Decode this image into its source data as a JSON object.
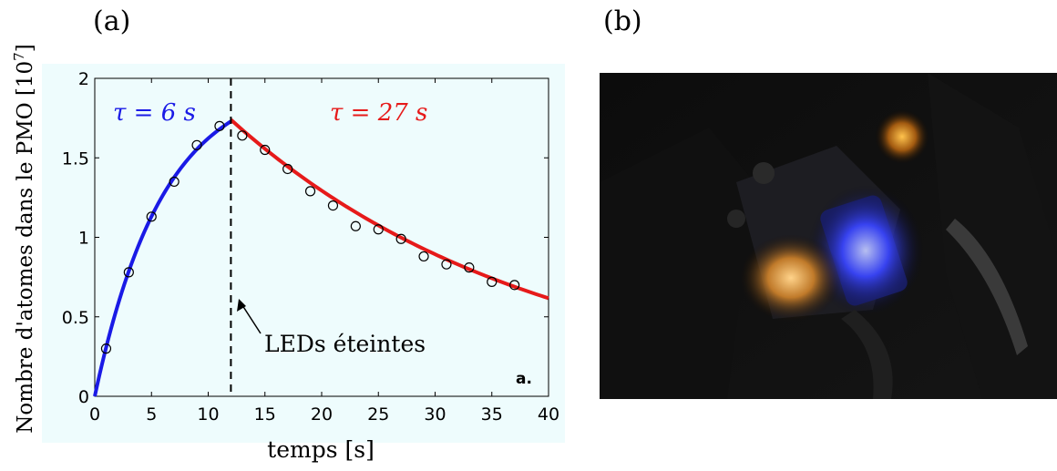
{
  "panels": {
    "a": "(a)",
    "b": "(b)"
  },
  "colors": {
    "fit_rise": "#1a1ae6",
    "fit_decay": "#e61a1a",
    "markers": "#000000",
    "plot_bg": "#eefcfd"
  },
  "chart_data": {
    "type": "scatter",
    "xlabel": "temps [s]",
    "ylabel": "Nombre d'atomes dans le PMO [10^7]",
    "xlim": [
      0,
      40
    ],
    "ylim": [
      0,
      2
    ],
    "xticks": [
      0,
      5,
      10,
      15,
      20,
      25,
      30,
      35,
      40
    ],
    "yticks": [
      0,
      0.5,
      1,
      1.5,
      2
    ],
    "ytick_labels": [
      "0",
      "0.5",
      "1",
      "1.5",
      "2"
    ],
    "series": [
      {
        "kind": "markers",
        "x": [
          1,
          3,
          5,
          7,
          9,
          11,
          13,
          15,
          17,
          19,
          21,
          23,
          25,
          27,
          29,
          31,
          33,
          35,
          37
        ],
        "y": [
          0.3,
          0.78,
          1.13,
          1.35,
          1.58,
          1.7,
          1.64,
          1.55,
          1.43,
          1.29,
          1.2,
          1.07,
          1.05,
          0.99,
          0.88,
          0.83,
          0.81,
          0.72,
          0.7
        ]
      },
      {
        "kind": "fit_rise",
        "tau": 6,
        "amplitude": 2.0,
        "x_range": [
          0,
          12
        ]
      },
      {
        "kind": "fit_decay",
        "tau": 27,
        "y0": 1.74,
        "t0": 12,
        "x_range": [
          12,
          40
        ]
      }
    ],
    "vline_x": 12,
    "annotations": {
      "tau_rise": "τ = 6 s",
      "tau_decay": "τ = 27 s",
      "arrow_label": "LEDs éteintes",
      "panel_tag": "a."
    }
  }
}
